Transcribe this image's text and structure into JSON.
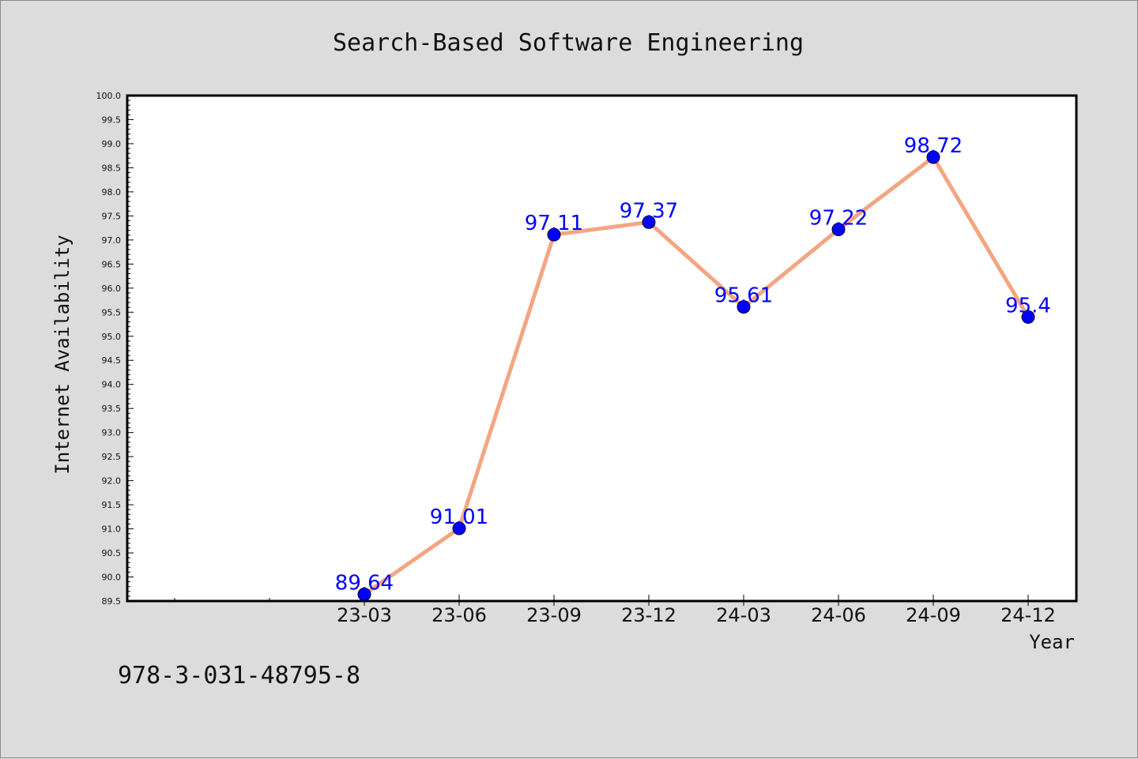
{
  "chart_data": {
    "type": "line",
    "title": "Search-Based Software Engineering",
    "xlabel": "Year",
    "ylabel": "Internet Availability",
    "categories": [
      "23-03",
      "23-06",
      "23-09",
      "23-12",
      "24-03",
      "24-06",
      "24-09",
      "24-12"
    ],
    "series": [
      {
        "values": [
          89.64,
          91.01,
          97.11,
          97.37,
          95.61,
          97.22,
          98.72,
          95.4
        ]
      }
    ],
    "data_labels": [
      "89.64",
      "91.01",
      "97.11",
      "97.37",
      "95.61",
      "97.22",
      "98.72",
      "95.4"
    ],
    "ylim": [
      89.5,
      100.0
    ],
    "yticks": [
      "89.5",
      "90.0",
      "90.5",
      "91.0",
      "91.5",
      "92.0",
      "92.5",
      "93.0",
      "93.5",
      "94.0",
      "94.5",
      "95.0",
      "95.5",
      "96.0",
      "96.5",
      "97.0",
      "97.5",
      "98.0",
      "98.5",
      "99.0",
      "99.5",
      "100.0"
    ],
    "grid": false,
    "legend": "none",
    "colors": {
      "line": "#f4a582",
      "marker": "#0000ff",
      "label": "#0000ff",
      "background": "#dcdcdc",
      "plot_background": "#ffffff"
    }
  },
  "footer": {
    "isbn": "978-3-031-48795-8"
  }
}
